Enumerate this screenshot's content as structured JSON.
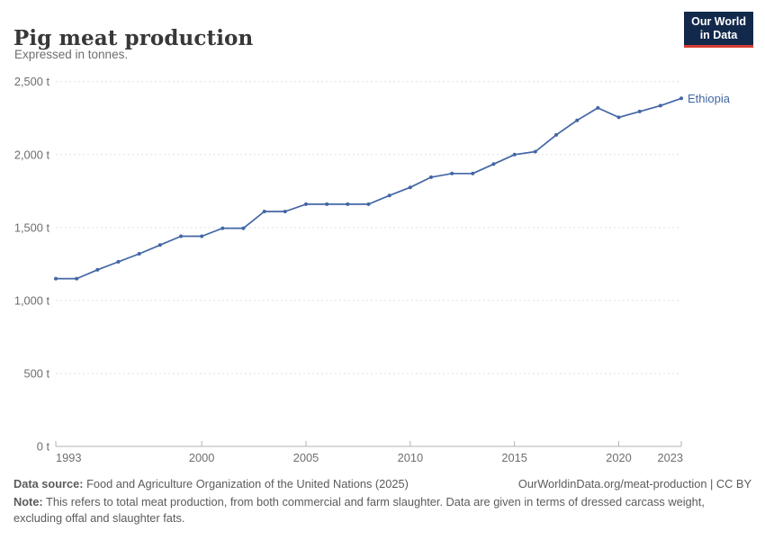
{
  "header": {
    "title": "Pig meat production",
    "subtitle": "Expressed in tonnes."
  },
  "logo": {
    "line1": "Our World",
    "line2": "in Data"
  },
  "chart_data": {
    "type": "line",
    "title": "Pig meat production",
    "subtitle": "Expressed in tonnes.",
    "xlabel": "",
    "ylabel": "",
    "xlim": [
      1993,
      2023
    ],
    "ylim": [
      0,
      2500
    ],
    "grid": "horizontal-dashed",
    "legend": "end-of-line-label",
    "x_ticks": [
      1993,
      2000,
      2005,
      2010,
      2015,
      2020,
      2023
    ],
    "y_ticks": [
      0,
      500,
      1000,
      1500,
      2000,
      2500
    ],
    "y_unit": " t",
    "x": [
      1993,
      1994,
      1995,
      1996,
      1997,
      1998,
      1999,
      2000,
      2001,
      2002,
      2003,
      2004,
      2005,
      2006,
      2007,
      2008,
      2009,
      2010,
      2011,
      2012,
      2013,
      2014,
      2015,
      2016,
      2017,
      2018,
      2019,
      2020,
      2021,
      2022,
      2023
    ],
    "series": [
      {
        "name": "Ethiopia",
        "color": "#4266a5",
        "values": [
          1150,
          1150,
          1210,
          1265,
          1320,
          1380,
          1440,
          1440,
          1495,
          1495,
          1610,
          1610,
          1660,
          1660,
          1660,
          1660,
          1720,
          1775,
          1845,
          1870,
          1870,
          1935,
          2000,
          2020,
          2135,
          2235,
          2320,
          2255,
          2295,
          2335,
          2385
        ]
      }
    ]
  },
  "colors": {
    "line": "#4266a5",
    "grid": "#e0e0e0",
    "axis": "#b3b3b3",
    "tick_label": "#6e6e6e",
    "title": "#383838",
    "subtitle": "#6e6e6e",
    "footer": "#5b5b5b",
    "logo_bg": "#12294b",
    "logo_accent": "#d73c34"
  },
  "footer": {
    "datasource_label": "Data source:",
    "datasource_text": " Food and Agriculture Organization of the United Nations (2025)",
    "citation": "OurWorldinData.org/meat-production | CC BY",
    "note_label": "Note:",
    "note_text": " This refers to total meat production, from both commercial and farm slaughter. Data are given in terms of dressed carcass weight, excluding offal and slaughter fats."
  }
}
